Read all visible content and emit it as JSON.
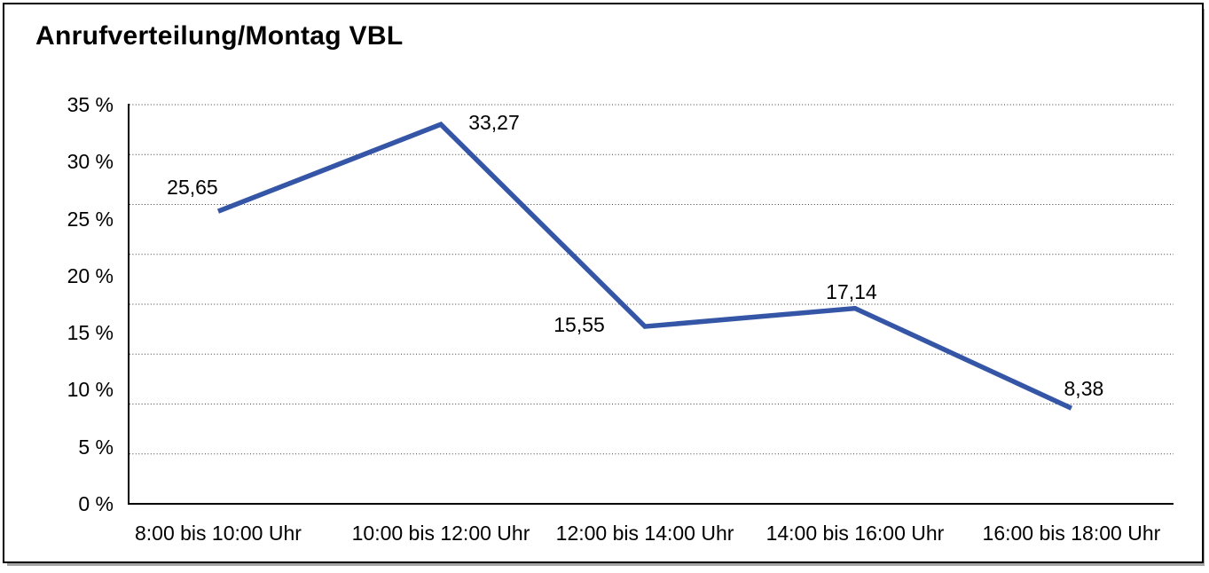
{
  "chart_data": {
    "type": "line",
    "title": "Anrufverteilung/Montag VBL",
    "categories": [
      "8:00 bis 10:00 Uhr",
      "10:00 bis 12:00 Uhr",
      "12:00 bis 14:00 Uhr",
      "14:00 bis 16:00 Uhr",
      "16:00 bis 18:00 Uhr"
    ],
    "values": [
      25.65,
      33.27,
      15.55,
      17.14,
      8.38
    ],
    "value_labels": [
      "25,65",
      "33,27",
      "15,55",
      "17,14",
      "8,38"
    ],
    "xlabel": "",
    "ylabel": "",
    "ylim": [
      0,
      35
    ],
    "ytick_step": 5,
    "ytick_labels": [
      "35 %",
      "30 %",
      "25 %",
      "20 %",
      "15 %",
      "10 %",
      "5 %",
      "0 %"
    ],
    "grid": "horizontal-dotted",
    "dotted_gridline_count": 8,
    "legend": "none",
    "colors": {
      "line": "#3556A6",
      "axis": "#000000",
      "gridline": "#3c3c3c",
      "text": "#000000",
      "frame_border": "#000000",
      "background": "#ffffff"
    }
  }
}
